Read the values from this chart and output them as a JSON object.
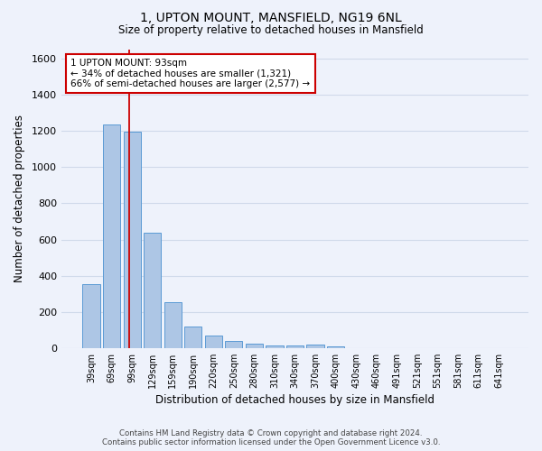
{
  "title": "1, UPTON MOUNT, MANSFIELD, NG19 6NL",
  "subtitle": "Size of property relative to detached houses in Mansfield",
  "xlabel": "Distribution of detached houses by size in Mansfield",
  "ylabel": "Number of detached properties",
  "footer_line1": "Contains HM Land Registry data © Crown copyright and database right 2024.",
  "footer_line2": "Contains public sector information licensed under the Open Government Licence v3.0.",
  "categories": [
    "39sqm",
    "69sqm",
    "99sqm",
    "129sqm",
    "159sqm",
    "190sqm",
    "220sqm",
    "250sqm",
    "280sqm",
    "310sqm",
    "340sqm",
    "370sqm",
    "400sqm",
    "430sqm",
    "460sqm",
    "491sqm",
    "521sqm",
    "551sqm",
    "581sqm",
    "611sqm",
    "641sqm"
  ],
  "values": [
    355,
    1235,
    1195,
    640,
    255,
    120,
    70,
    37,
    22,
    15,
    13,
    18,
    10,
    0,
    0,
    0,
    0,
    0,
    0,
    0,
    0
  ],
  "bar_color": "#adc6e5",
  "bar_edge_color": "#5b9bd5",
  "grid_color": "#d0daea",
  "background_color": "#eef2fb",
  "annotation_text": "1 UPTON MOUNT: 93sqm\n← 34% of detached houses are smaller (1,321)\n66% of semi-detached houses are larger (2,577) →",
  "annotation_box_color": "#ffffff",
  "annotation_border_color": "#cc0000",
  "ylim": [
    0,
    1650
  ],
  "yticks": [
    0,
    200,
    400,
    600,
    800,
    1000,
    1200,
    1400,
    1600
  ],
  "redline_index": 1.88
}
